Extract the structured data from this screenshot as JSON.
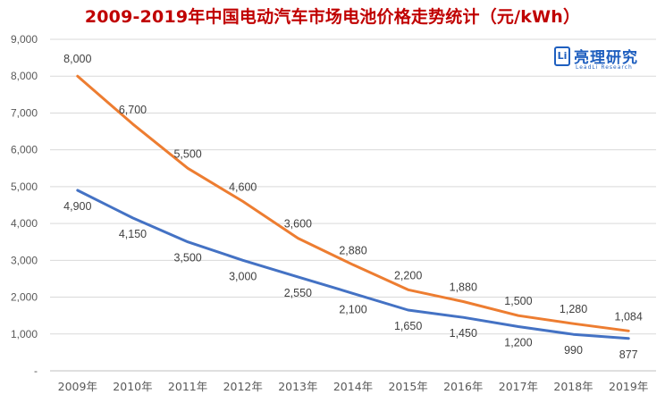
{
  "chart_data": {
    "type": "line",
    "title": "2009-2019年中国电动汽车市场电池价格走势统计（元/kWh）",
    "categories": [
      "2009年",
      "2010年",
      "2011年",
      "2012年",
      "2013年",
      "2014年",
      "2015年",
      "2016年",
      "2017年",
      "2018年",
      "2019年"
    ],
    "y_ticks": [
      "-",
      "1,000",
      "2,000",
      "3,000",
      "4,000",
      "5,000",
      "6,000",
      "7,000",
      "8,000",
      "9,000"
    ],
    "ylim": [
      0,
      9000
    ],
    "grid": true,
    "series": [
      {
        "color": "#ed7d31",
        "values": [
          8000,
          6700,
          5500,
          4600,
          3600,
          2880,
          2200,
          1880,
          1500,
          1280,
          1084
        ],
        "labels": [
          "8,000",
          "6,700",
          "5,500",
          "4,600",
          "3,600",
          "2,880",
          "2,200",
          "1,880",
          "1,500",
          "1,280",
          "1,084"
        ]
      },
      {
        "color": "#4472c4",
        "values": [
          4900,
          4150,
          3500,
          3000,
          2550,
          2100,
          1650,
          1450,
          1200,
          990,
          877
        ],
        "labels": [
          "4,900",
          "4,150",
          "3,500",
          "3,000",
          "2,550",
          "2,100",
          "1,650",
          "1,450",
          "1,200",
          "990",
          "877"
        ]
      }
    ]
  },
  "logo": {
    "mark": "Li",
    "name": "亮理研究",
    "sub": "LeadLi Research"
  }
}
